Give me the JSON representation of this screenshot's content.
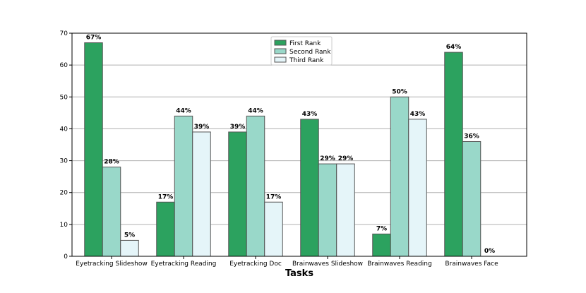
{
  "chart_data": {
    "type": "bar",
    "title": "",
    "xlabel": "Tasks",
    "ylabel": "",
    "ylim": [
      0,
      70
    ],
    "yticks": [
      0,
      10,
      20,
      30,
      40,
      50,
      60,
      70
    ],
    "grid": "horizontal",
    "legend_position": "top-center",
    "categories": [
      "Eyetracking Slideshow",
      "Eyetracking Reading",
      "Eyetracking Doc",
      "Brainwaves Slideshow",
      "Brainwaves Reading",
      "Brainwaves Face"
    ],
    "series": [
      {
        "name": "First Rank",
        "color": "#2ca25f",
        "values": [
          67,
          17,
          39,
          43,
          7,
          64
        ],
        "labels": [
          "67%",
          "17%",
          "39%",
          "43%",
          "7%",
          "64%"
        ]
      },
      {
        "name": "Second Rank",
        "color": "#99d8c9",
        "values": [
          28,
          44,
          44,
          29,
          50,
          36
        ],
        "labels": [
          "28%",
          "44%",
          "44%",
          "29%",
          "50%",
          "36%"
        ]
      },
      {
        "name": "Third Rank",
        "color": "#e5f5f9",
        "values": [
          5,
          39,
          17,
          29,
          43,
          0
        ],
        "labels": [
          "5%",
          "39%",
          "17%",
          "29%",
          "43%",
          "0%"
        ]
      }
    ]
  },
  "colors": {
    "bar_edge": "#555555",
    "grid": "#b0b0b0",
    "axis": "#000000"
  }
}
